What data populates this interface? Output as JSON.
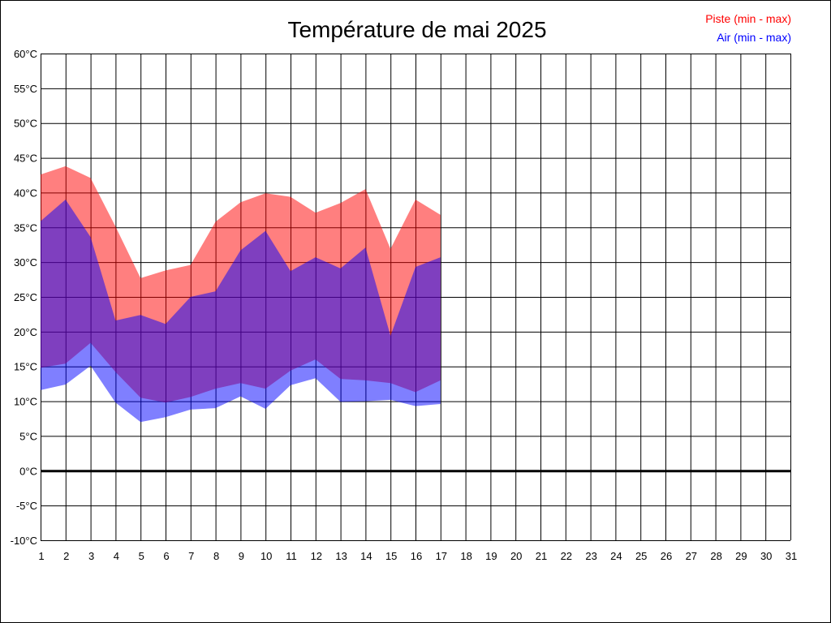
{
  "chart_data": {
    "type": "area",
    "title": "Température de mai 2025",
    "xlabel": "",
    "ylabel": "",
    "x": [
      1,
      2,
      3,
      4,
      5,
      6,
      7,
      8,
      9,
      10,
      11,
      12,
      13,
      14,
      15,
      16,
      17,
      18,
      19,
      20,
      21,
      22,
      23,
      24,
      25,
      26,
      27,
      28,
      29,
      30,
      31
    ],
    "x_tick_labels": [
      "1",
      "2",
      "3",
      "4",
      "5",
      "6",
      "7",
      "8",
      "9",
      "10",
      "11",
      "12",
      "13",
      "14",
      "15",
      "16",
      "17",
      "18",
      "19",
      "20",
      "21",
      "22",
      "23",
      "24",
      "25",
      "26",
      "27",
      "28",
      "29",
      "30",
      "31"
    ],
    "y_tick_labels": [
      "60°C",
      "55°C",
      "50°C",
      "45°C",
      "40°C",
      "35°C",
      "30°C",
      "25°C",
      "20°C",
      "15°C",
      "10°C",
      "5°C",
      "0°C",
      "-5°C",
      "-10°C"
    ],
    "ylim": [
      -10,
      60
    ],
    "xlim": [
      1,
      31
    ],
    "grid": true,
    "legend_position": "top-right",
    "series": [
      {
        "name": "Piste (min - max)",
        "color": "#ff0000",
        "max": [
          42.6,
          43.8,
          42.1,
          35.1,
          27.7,
          28.8,
          29.6,
          35.8,
          38.6,
          39.9,
          39.4,
          37.1,
          38.5,
          40.5,
          31.9,
          39.0,
          36.8
        ],
        "min": [
          14.8,
          15.4,
          18.4,
          14.2,
          10.5,
          9.8,
          10.6,
          11.8,
          12.6,
          11.8,
          14.4,
          16.0,
          13.2,
          13.0,
          12.6,
          11.3,
          13.0
        ]
      },
      {
        "name": "Air (min - max)",
        "color": "#0000ff",
        "max": [
          35.9,
          39.0,
          33.6,
          21.6,
          22.4,
          21.1,
          25.0,
          25.8,
          31.7,
          34.5,
          28.7,
          30.7,
          29.1,
          32.1,
          19.4,
          29.3,
          30.7
        ],
        "min": [
          11.6,
          12.4,
          15.1,
          9.8,
          7.0,
          7.7,
          8.8,
          9.0,
          10.7,
          8.9,
          12.3,
          13.3,
          9.9,
          10.0,
          10.2,
          9.3,
          9.6
        ]
      }
    ]
  }
}
